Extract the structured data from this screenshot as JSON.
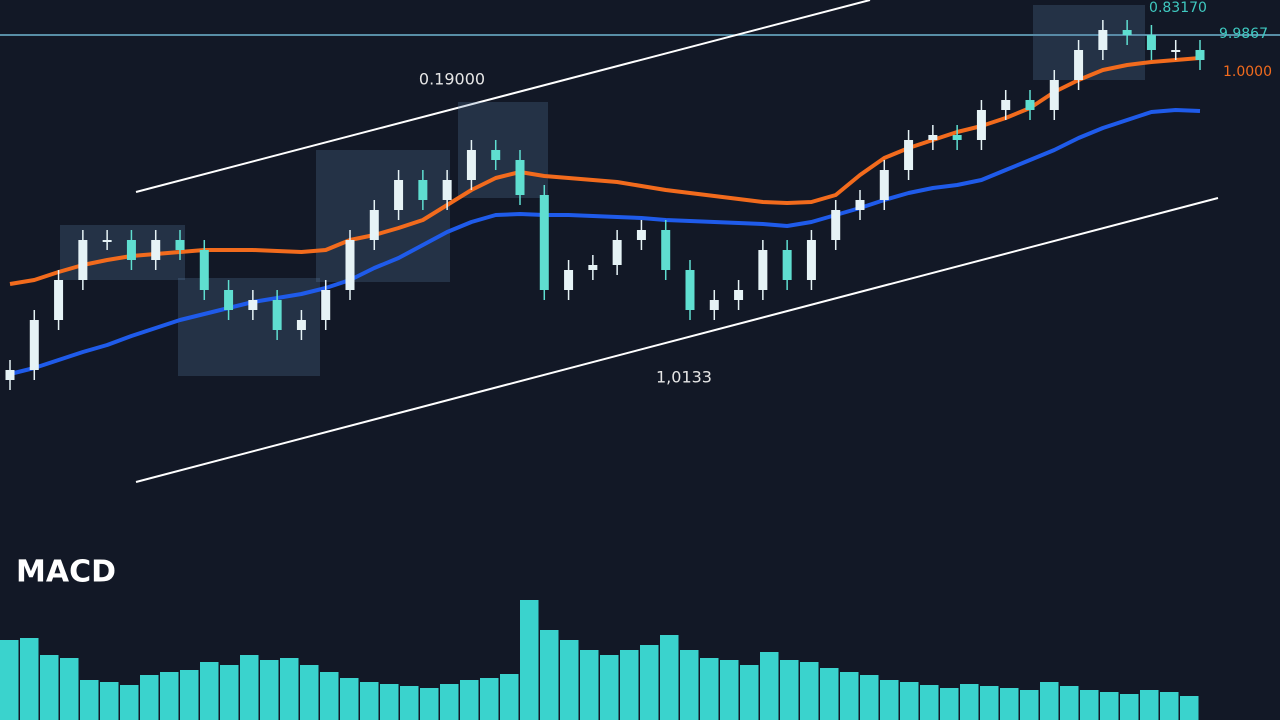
{
  "chart_data": [
    {
      "type": "candlestick",
      "ylim": [
        0,
        480
      ],
      "open": [
        100,
        110,
        160,
        200,
        240,
        240,
        220,
        240,
        230,
        190,
        170,
        180,
        150,
        160,
        190,
        240,
        270,
        300,
        280,
        300,
        330,
        320,
        285,
        190,
        210,
        215,
        240,
        250,
        210,
        170,
        180,
        190,
        230,
        200,
        240,
        270,
        280,
        310,
        340,
        345,
        340,
        370,
        380,
        370,
        400,
        430,
        450,
        445,
        430,
        430
      ],
      "high": [
        120,
        170,
        210,
        250,
        250,
        250,
        250,
        250,
        240,
        200,
        190,
        190,
        170,
        200,
        250,
        280,
        310,
        310,
        310,
        340,
        340,
        330,
        295,
        220,
        225,
        250,
        260,
        260,
        220,
        190,
        200,
        240,
        240,
        250,
        280,
        290,
        320,
        350,
        355,
        355,
        380,
        390,
        390,
        410,
        440,
        460,
        460,
        455,
        440,
        440
      ],
      "low": [
        90,
        100,
        150,
        190,
        230,
        210,
        210,
        220,
        180,
        160,
        160,
        140,
        140,
        150,
        180,
        230,
        260,
        270,
        270,
        290,
        310,
        275,
        180,
        180,
        200,
        205,
        230,
        200,
        160,
        160,
        170,
        180,
        190,
        190,
        230,
        260,
        270,
        300,
        330,
        330,
        330,
        360,
        360,
        360,
        390,
        420,
        435,
        420,
        420,
        410
      ],
      "close": [
        110,
        160,
        200,
        240,
        240,
        220,
        240,
        230,
        190,
        170,
        180,
        150,
        160,
        190,
        240,
        270,
        300,
        280,
        300,
        330,
        320,
        285,
        190,
        210,
        215,
        240,
        250,
        210,
        170,
        180,
        190,
        230,
        200,
        240,
        270,
        280,
        310,
        340,
        345,
        340,
        370,
        380,
        370,
        400,
        430,
        450,
        445,
        430,
        430,
        420
      ],
      "up_color": "#e6f3f6",
      "down_color": "#5fded0",
      "lines": [
        {
          "color": "#f26b1d",
          "values": [
            196,
            200,
            208,
            215,
            220,
            224,
            226,
            228,
            230,
            230,
            230,
            229,
            228,
            230,
            240,
            245,
            252,
            260,
            275,
            290,
            302,
            308,
            304,
            302,
            300,
            298,
            294,
            290,
            287,
            284,
            281,
            278,
            277,
            278,
            285,
            305,
            322,
            332,
            340,
            348,
            354,
            362,
            372,
            388,
            400,
            410,
            415,
            418,
            420,
            422
          ]
        },
        {
          "color": "#1f5bea",
          "values": [
            106,
            112,
            120,
            128,
            135,
            144,
            152,
            160,
            166,
            172,
            178,
            182,
            186,
            192,
            200,
            212,
            222,
            235,
            248,
            258,
            265,
            266,
            265,
            265,
            264,
            263,
            262,
            260,
            259,
            258,
            257,
            256,
            254,
            258,
            265,
            272,
            280,
            287,
            292,
            295,
            300,
            310,
            320,
            330,
            342,
            352,
            360,
            368,
            370,
            369
          ]
        }
      ],
      "annotations": [
        {
          "text": "0.19000",
          "color": "#e6e6e6"
        },
        {
          "text": "1,0133",
          "color": "#e6e6e6"
        },
        {
          "text": "0.83170",
          "color": "#3fc9c0"
        },
        {
          "text": "9.9867",
          "color": "#3fc9c0"
        },
        {
          "text": "1.0000",
          "color": "#f26b1d"
        }
      ]
    },
    {
      "type": "bar",
      "title": "MACD",
      "ylim": [
        0,
        120
      ],
      "color": "#3fe8e0",
      "values": [
        80,
        82,
        65,
        62,
        40,
        38,
        35,
        45,
        48,
        50,
        58,
        55,
        65,
        60,
        62,
        55,
        48,
        42,
        38,
        36,
        34,
        32,
        36,
        40,
        42,
        46,
        120,
        90,
        80,
        70,
        65,
        70,
        75,
        85,
        70,
        62,
        60,
        55,
        68,
        60,
        58,
        52,
        48,
        45,
        40,
        38,
        35,
        32,
        36,
        34,
        32,
        30,
        38,
        34,
        30,
        28,
        26,
        30,
        28,
        24
      ]
    }
  ]
}
